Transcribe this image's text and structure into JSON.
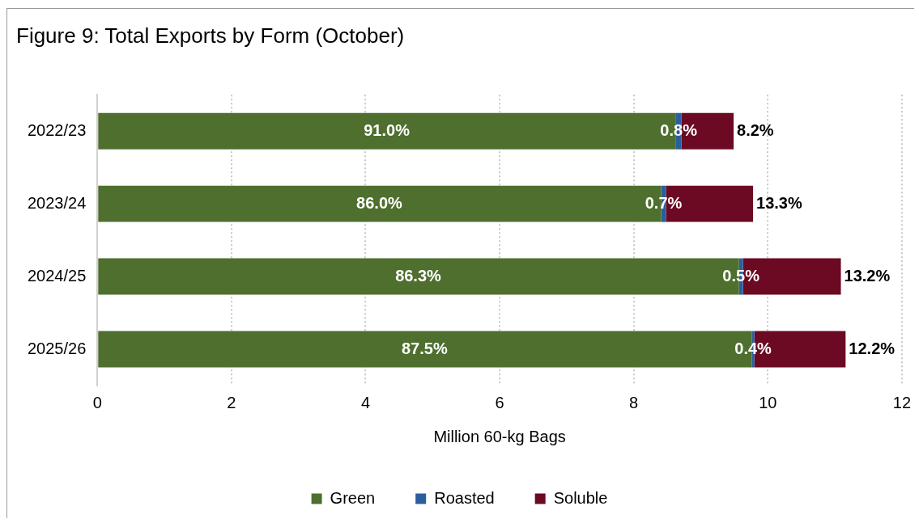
{
  "chart_data": {
    "type": "bar",
    "orientation": "horizontal",
    "stacked": true,
    "title": "Figure 9: Total Exports by Form (October)",
    "xlabel": "Million 60-kg Bags",
    "categories": [
      "2022/23",
      "2023/24",
      "2024/25",
      "2025/26"
    ],
    "series": [
      {
        "name": "Green",
        "color": "#4e6f2e",
        "values": [
          8.63,
          8.41,
          9.57,
          9.76
        ]
      },
      {
        "name": "Roasted",
        "color": "#2a5f9e",
        "values": [
          0.08,
          0.07,
          0.06,
          0.04
        ]
      },
      {
        "name": "Soluble",
        "color": "#6b0a22",
        "values": [
          0.78,
          1.3,
          1.46,
          1.36
        ]
      }
    ],
    "annotations": [
      "91.0%",
      {
        "text": "0.8%",
        "x": 8.71,
        "y": "2022/23"
      },
      {
        "text": "8.2%",
        "x": 9.49,
        "y": "2022/23"
      },
      "86.0%",
      {
        "text": "0.7%",
        "x": 8.48,
        "y": "2023/24"
      },
      {
        "text": "13.3%",
        "x": 9.78,
        "y": "2023/24"
      },
      "86.3%",
      {
        "text": "0.5%",
        "x": 9.63,
        "y": "2024/25"
      },
      {
        "text": "13.2%",
        "x": 11.09,
        "y": "2024/25"
      },
      "87.5%",
      {
        "text": "0.4%",
        "x": 9.8,
        "y": "2025/26"
      },
      {
        "text": "12.2%",
        "x": 11.16,
        "y": "2025/26"
      }
    ],
    "xlim": [
      0,
      12
    ],
    "xticks": [
      0,
      2,
      4,
      6,
      8,
      10,
      12
    ],
    "grid": "x",
    "legend": "bottom"
  }
}
